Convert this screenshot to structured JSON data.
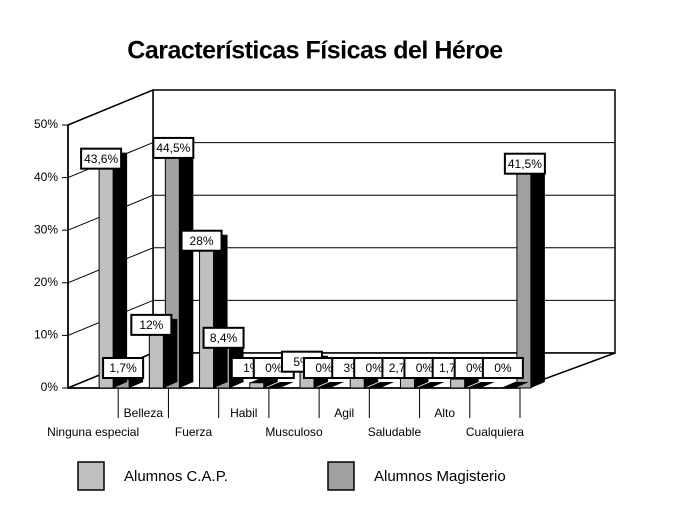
{
  "chart_data": {
    "type": "bar3d",
    "title": "Características Físicas del Héroe",
    "categories": [
      "Ninguna especial",
      "Belleza",
      "Fuerza",
      "Habil",
      "Musculoso",
      "Agil",
      "Saludable",
      "Alto",
      "Cualquiera"
    ],
    "series": [
      {
        "name": "Alumnos C.A.P.",
        "color": "#c0c0c0",
        "values": [
          43.6,
          12,
          28,
          1,
          5,
          3,
          2.7,
          1.7,
          0
        ],
        "value_labels": [
          "43,6%",
          "12%",
          "28%",
          "1%",
          "5%",
          "3%",
          "2,7%",
          "1,7%",
          "0%"
        ]
      },
      {
        "name": "Alumnos Magisterio",
        "color": "#a0a0a0",
        "values": [
          1.7,
          44.5,
          8.4,
          0,
          0,
          0,
          0,
          0,
          41.5
        ],
        "value_labels": [
          "1,7%",
          "44,5%",
          "8,4%",
          "0%",
          "0%",
          "0%",
          "0%",
          "0%",
          "41,5%"
        ]
      }
    ],
    "ylim": [
      0,
      50
    ],
    "yticks": [
      {
        "value": 0,
        "label": "0%"
      },
      {
        "value": 10,
        "label": "10%"
      },
      {
        "value": 20,
        "label": "20%"
      },
      {
        "value": 30,
        "label": "30%"
      },
      {
        "value": 40,
        "label": "40%"
      },
      {
        "value": 50,
        "label": "50%"
      }
    ],
    "grid": true
  }
}
